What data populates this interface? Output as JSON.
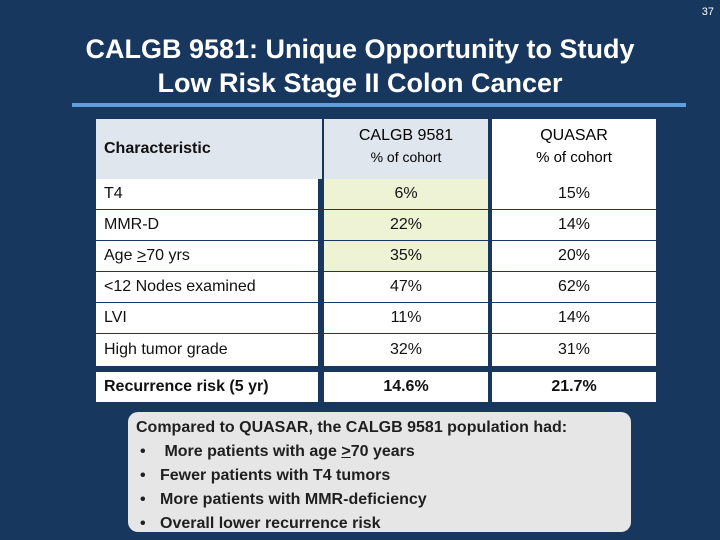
{
  "slide_number": "37",
  "title": {
    "line1": "CALGB 9581: Unique Opportunity to Study",
    "line2": "Low Risk Stage II Colon Cancer"
  },
  "table": {
    "header": {
      "characteristic": "Characteristic",
      "col1_name": "CALGB 9581",
      "col1_sub": "% of cohort",
      "col2_name": "QUASAR",
      "col2_sub": "% of cohort"
    },
    "rows": [
      {
        "label": "T4",
        "calgb": "6%",
        "quasar": "15%"
      },
      {
        "label": "MMR-D",
        "calgb": "22%",
        "quasar": "14%"
      },
      {
        "label_prefix": "Age ",
        "label_underlined": ">",
        "label_suffix": "70 yrs",
        "calgb": "35%",
        "quasar": "20%"
      },
      {
        "label": "<12 Nodes examined",
        "calgb": "47%",
        "quasar": "62%"
      },
      {
        "label": "LVI",
        "calgb": "11%",
        "quasar": "14%"
      },
      {
        "label": "High tumor grade",
        "calgb": "32%",
        "quasar": "31%"
      }
    ],
    "recurrence": {
      "label": "Recurrence risk (5 yr)",
      "calgb": "14.6%",
      "quasar": "21.7%"
    }
  },
  "summary": {
    "intro": "Compared to QUASAR, the CALGB 9581 population had:",
    "bullet1_prefix": "More patients with age ",
    "bullet1_underlined": ">",
    "bullet1_suffix": "70 years",
    "bullet2": "Fewer patients with T4 tumors",
    "bullet3": "More patients with MMR-deficiency",
    "bullet4": "Overall lower recurrence risk"
  },
  "colors": {
    "background": "#17375e",
    "title_rule": "#5fa0dc",
    "header_fill": "#dfe6ee",
    "highlight_fill": "#eff3d6",
    "summary_fill": "#e6e6e6"
  }
}
